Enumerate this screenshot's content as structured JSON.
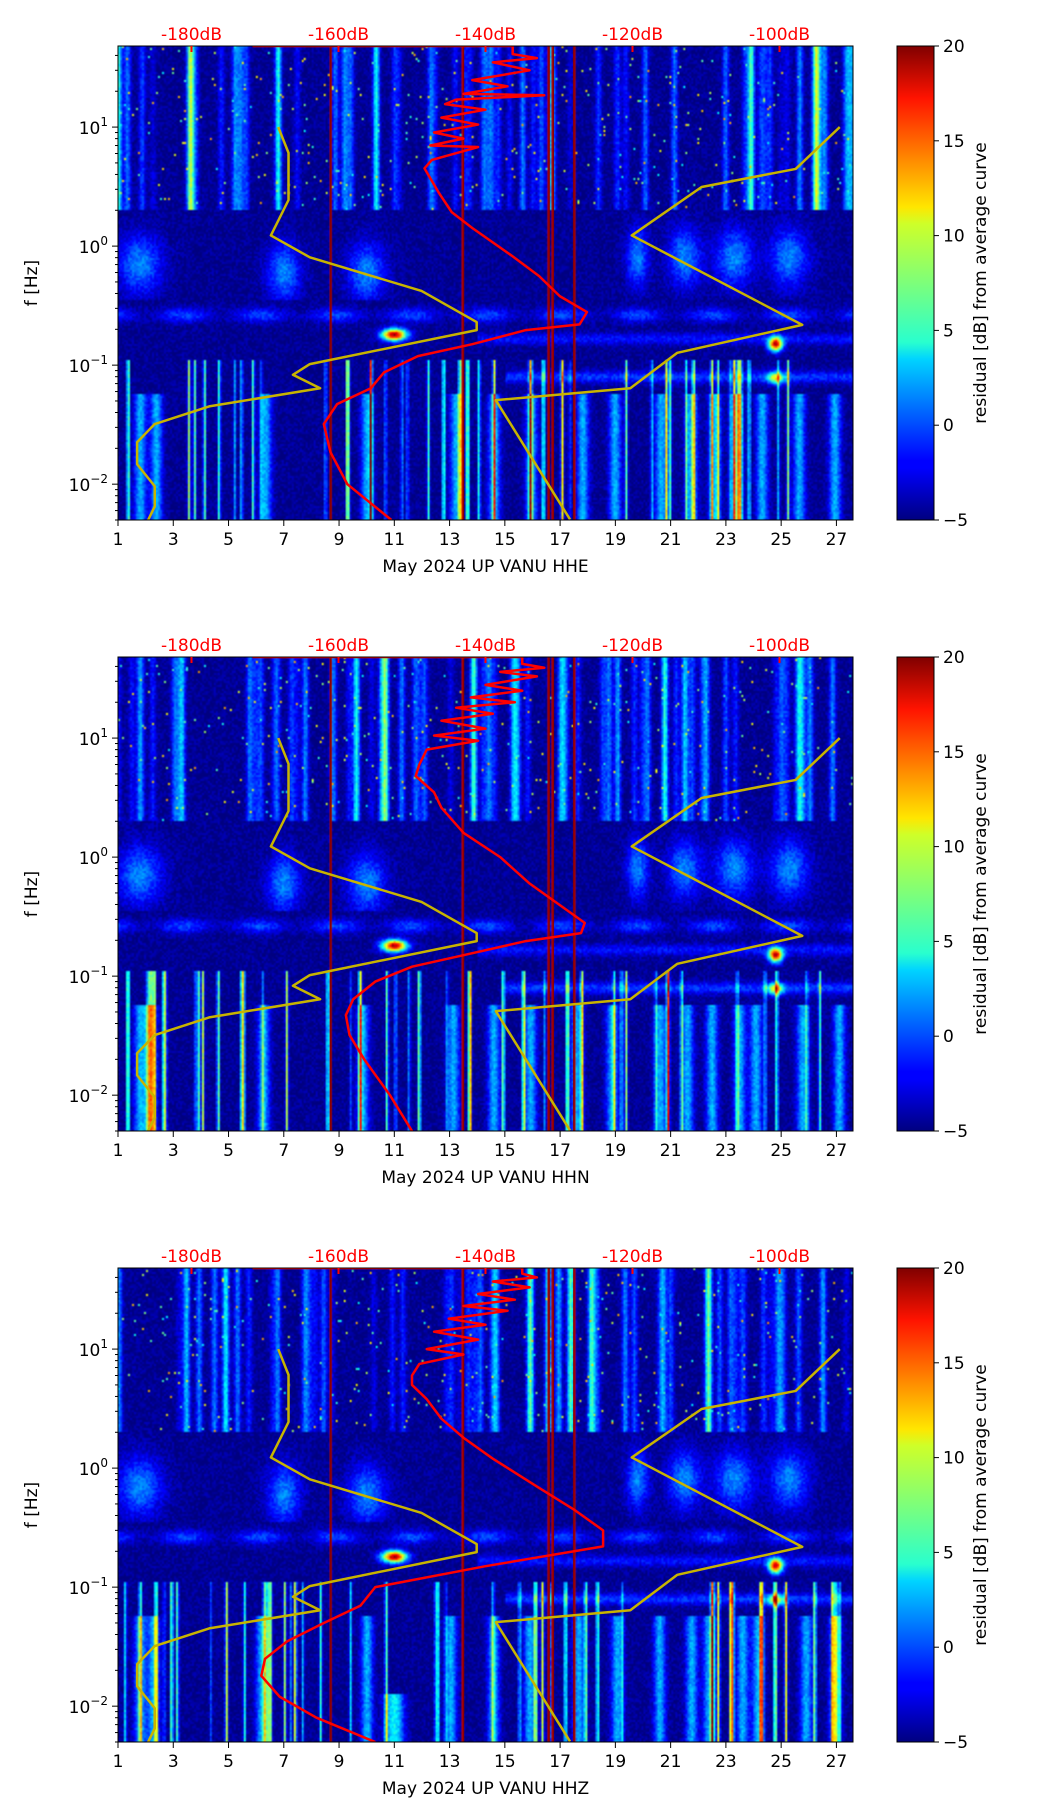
{
  "chart_data": [
    {
      "type": "heatmap",
      "title": "May 2024 UP VANU  HHE",
      "xlabel": "May 2024 UP VANU  HHE",
      "ylabel": "f [Hz]",
      "xlim": [
        1,
        27.6
      ],
      "ylim": [
        0.005,
        48
      ],
      "yscale": "log",
      "xticks": [
        "1",
        "3",
        "5",
        "7",
        "9",
        "11",
        "13",
        "15",
        "17",
        "19",
        "21",
        "23",
        "25",
        "27"
      ],
      "yticks": [
        {
          "base": "10",
          "exp": "−2",
          "value": 0.01
        },
        {
          "base": "10",
          "exp": "−1",
          "value": 0.1
        },
        {
          "base": "10",
          "exp": "0",
          "value": 1
        },
        {
          "base": "10",
          "exp": "1",
          "value": 10
        }
      ],
      "top_axis": {
        "range_db": [
          -190,
          -90
        ],
        "ticks": [
          {
            "label": "-180dB",
            "value": -180
          },
          {
            "label": "-160dB",
            "value": -160
          },
          {
            "label": "-140dB",
            "value": -140
          },
          {
            "label": "-120dB",
            "value": -120
          },
          {
            "label": "-100dB",
            "value": -100
          }
        ]
      },
      "colorbar": {
        "label": "residual [dB] from average curve",
        "range": [
          -5,
          20
        ],
        "ticks": [
          "−5",
          "0",
          "5",
          "10",
          "15",
          "20"
        ],
        "colormap": "jet"
      },
      "vertical_lines_days": [
        8.7,
        13.5,
        16.6,
        16.75,
        17.5
      ],
      "hotspots": [
        {
          "day": 11,
          "freq": 0.18
        },
        {
          "day": 24.8,
          "freq": 0.15
        }
      ],
      "average_curve": {
        "color": "#ff0000",
        "points_db_freq": [
          [
            -171.7,
            48
          ],
          [
            -136.3,
            48
          ],
          [
            -136.3,
            41
          ],
          [
            -133,
            38
          ],
          [
            -139,
            35
          ],
          [
            -134,
            30
          ],
          [
            -141.8,
            24.8
          ],
          [
            -137,
            22
          ],
          [
            -143,
            19
          ],
          [
            -132,
            18.5
          ],
          [
            -144,
            17
          ],
          [
            -145.5,
            15.6
          ],
          [
            -140,
            14
          ],
          [
            -146,
            12
          ],
          [
            -141,
            10.5
          ],
          [
            -147,
            9
          ],
          [
            -143,
            8
          ],
          [
            -147.5,
            7
          ],
          [
            -141,
            6.8
          ],
          [
            -147.3,
            5.3
          ],
          [
            -148.3,
            4.5
          ],
          [
            -146.4,
            2.84
          ],
          [
            -144.6,
            1.93
          ],
          [
            -141.8,
            1.42
          ],
          [
            -136.3,
            0.82
          ],
          [
            -132.7,
            0.56
          ],
          [
            -129.9,
            0.38
          ],
          [
            -126.2,
            0.279
          ],
          [
            -127.2,
            0.22
          ],
          [
            -134.5,
            0.197
          ],
          [
            -141.8,
            0.15
          ],
          [
            -149.2,
            0.119
          ],
          [
            -153.8,
            0.087
          ],
          [
            -155.6,
            0.064
          ],
          [
            -160.2,
            0.047
          ],
          [
            -162,
            0.032
          ],
          [
            -161.1,
            0.0186
          ],
          [
            -158.8,
            0.01
          ],
          [
            -152.8,
            0.005
          ]
        ]
      },
      "nlnm": {
        "color": "#c8b400",
        "points_db_freq": [
          [
            -168.2,
            10
          ],
          [
            -166.8,
            6.07
          ],
          [
            -166.8,
            2.44
          ],
          [
            -169.2,
            1.23
          ],
          [
            -163.9,
            0.805
          ],
          [
            -148.7,
            0.42
          ],
          [
            -141.2,
            0.23
          ],
          [
            -141.2,
            0.197
          ],
          [
            -163.9,
            0.102
          ],
          [
            -166.2,
            0.083
          ],
          [
            -162.5,
            0.064
          ],
          [
            -177.6,
            0.045
          ],
          [
            -185,
            0.032
          ],
          [
            -187.4,
            0.0225
          ],
          [
            -187.4,
            0.0147
          ],
          [
            -185,
            0.0096
          ],
          [
            -185,
            0.0065
          ],
          [
            -185.9,
            0.005
          ]
        ]
      },
      "nhnm": {
        "color": "#c8b400",
        "points_db_freq": [
          [
            -91.8,
            10
          ],
          [
            -97.8,
            4.45
          ],
          [
            -110.6,
            3.14
          ],
          [
            -120.1,
            1.23
          ],
          [
            -96.9,
            0.218
          ],
          [
            -113.9,
            0.127
          ],
          [
            -120.3,
            0.064
          ],
          [
            -138.6,
            0.0508
          ],
          [
            -128.5,
            0.00506
          ]
        ]
      }
    },
    {
      "type": "heatmap",
      "title": "May 2024 UP VANU  HHN",
      "xlabel": "May 2024 UP VANU  HHN",
      "ylabel": "f [Hz]",
      "xlim": [
        1,
        27.6
      ],
      "ylim": [
        0.005,
        48
      ],
      "yscale": "log",
      "xticks": [
        "1",
        "3",
        "5",
        "7",
        "9",
        "11",
        "13",
        "15",
        "17",
        "19",
        "21",
        "23",
        "25",
        "27"
      ],
      "yticks": [
        {
          "base": "10",
          "exp": "−2",
          "value": 0.01
        },
        {
          "base": "10",
          "exp": "−1",
          "value": 0.1
        },
        {
          "base": "10",
          "exp": "0",
          "value": 1
        },
        {
          "base": "10",
          "exp": "1",
          "value": 10
        }
      ],
      "top_axis": {
        "range_db": [
          -190,
          -90
        ],
        "ticks": [
          {
            "label": "-180dB",
            "value": -180
          },
          {
            "label": "-160dB",
            "value": -160
          },
          {
            "label": "-140dB",
            "value": -140
          },
          {
            "label": "-120dB",
            "value": -120
          },
          {
            "label": "-100dB",
            "value": -100
          }
        ]
      },
      "colorbar": {
        "label": "residual [dB] from average curve",
        "range": [
          -5,
          20
        ],
        "ticks": [
          "−5",
          "0",
          "5",
          "10",
          "15",
          "20"
        ],
        "colormap": "jet"
      },
      "vertical_lines_days": [
        8.7,
        13.5,
        16.6,
        16.75,
        17.5
      ],
      "hotspots": [
        {
          "day": 11,
          "freq": 0.18
        },
        {
          "day": 24.8,
          "freq": 0.15
        }
      ],
      "average_curve": {
        "color": "#ff0000",
        "points_db_freq": [
          [
            -171.7,
            48
          ],
          [
            -135,
            48
          ],
          [
            -135,
            42
          ],
          [
            -132,
            39
          ],
          [
            -138,
            36
          ],
          [
            -133,
            33
          ],
          [
            -140,
            28
          ],
          [
            -135,
            25
          ],
          [
            -142,
            22
          ],
          [
            -136,
            20
          ],
          [
            -144,
            18
          ],
          [
            -139,
            16
          ],
          [
            -146,
            14
          ],
          [
            -140,
            12
          ],
          [
            -147,
            10.5
          ],
          [
            -141,
            9.5
          ],
          [
            -148,
            8
          ],
          [
            -149,
            6
          ],
          [
            -149.5,
            4.8
          ],
          [
            -147,
            3.5
          ],
          [
            -146,
            2.6
          ],
          [
            -143,
            1.6
          ],
          [
            -138,
            1
          ],
          [
            -134,
            0.6
          ],
          [
            -130,
            0.4
          ],
          [
            -126.5,
            0.28
          ],
          [
            -127,
            0.23
          ],
          [
            -134.5,
            0.197
          ],
          [
            -143,
            0.15
          ],
          [
            -150,
            0.12
          ],
          [
            -155,
            0.09
          ],
          [
            -158,
            0.064
          ],
          [
            -159,
            0.047
          ],
          [
            -158.5,
            0.032
          ],
          [
            -156.5,
            0.02
          ],
          [
            -153,
            0.01
          ],
          [
            -150,
            0.005
          ]
        ]
      },
      "nlnm": {
        "color": "#c8b400",
        "points_db_freq": [
          [
            -168.2,
            10
          ],
          [
            -166.8,
            6.07
          ],
          [
            -166.8,
            2.44
          ],
          [
            -169.2,
            1.23
          ],
          [
            -163.9,
            0.805
          ],
          [
            -148.7,
            0.42
          ],
          [
            -141.2,
            0.23
          ],
          [
            -141.2,
            0.197
          ],
          [
            -163.9,
            0.102
          ],
          [
            -166.2,
            0.083
          ],
          [
            -162.5,
            0.064
          ],
          [
            -177.6,
            0.045
          ],
          [
            -185,
            0.032
          ],
          [
            -187.4,
            0.0225
          ],
          [
            -187.4,
            0.0147
          ],
          [
            -185,
            0.0096
          ],
          [
            -185,
            0.0065
          ],
          [
            -185.9,
            0.005
          ]
        ]
      },
      "nhnm": {
        "color": "#c8b400",
        "points_db_freq": [
          [
            -91.8,
            10
          ],
          [
            -97.8,
            4.45
          ],
          [
            -110.6,
            3.14
          ],
          [
            -120.1,
            1.23
          ],
          [
            -96.9,
            0.218
          ],
          [
            -113.9,
            0.127
          ],
          [
            -120.3,
            0.064
          ],
          [
            -138.6,
            0.0508
          ],
          [
            -128.5,
            0.00506
          ]
        ]
      }
    },
    {
      "type": "heatmap",
      "title": "May 2024 UP VANU  HHZ",
      "xlabel": "May 2024 UP VANU  HHZ",
      "ylabel": "f [Hz]",
      "xlim": [
        1,
        27.6
      ],
      "ylim": [
        0.005,
        48
      ],
      "yscale": "log",
      "xticks": [
        "1",
        "3",
        "5",
        "7",
        "9",
        "11",
        "13",
        "15",
        "17",
        "19",
        "21",
        "23",
        "25",
        "27"
      ],
      "yticks": [
        {
          "base": "10",
          "exp": "−2",
          "value": 0.01
        },
        {
          "base": "10",
          "exp": "−1",
          "value": 0.1
        },
        {
          "base": "10",
          "exp": "0",
          "value": 1
        },
        {
          "base": "10",
          "exp": "1",
          "value": 10
        }
      ],
      "top_axis": {
        "range_db": [
          -190,
          -90
        ],
        "ticks": [
          {
            "label": "-180dB",
            "value": -180
          },
          {
            "label": "-160dB",
            "value": -160
          },
          {
            "label": "-140dB",
            "value": -140
          },
          {
            "label": "-120dB",
            "value": -120
          },
          {
            "label": "-100dB",
            "value": -100
          }
        ]
      },
      "colorbar": {
        "label": "residual [dB] from average curve",
        "range": [
          -5,
          20
        ],
        "ticks": [
          "−5",
          "0",
          "5",
          "10",
          "15",
          "20"
        ],
        "colormap": "jet"
      },
      "vertical_lines_days": [
        8.7,
        13.5,
        16.6,
        16.75,
        17.5
      ],
      "hotspots": [
        {
          "day": 11,
          "freq": 0.18
        },
        {
          "day": 24.8,
          "freq": 0.15
        }
      ],
      "average_curve": {
        "color": "#ff0000",
        "points_db_freq": [
          [
            -171.7,
            48
          ],
          [
            -135,
            48
          ],
          [
            -135,
            43
          ],
          [
            -133,
            40
          ],
          [
            -139,
            37
          ],
          [
            -134,
            33
          ],
          [
            -141,
            29
          ],
          [
            -136,
            26
          ],
          [
            -143,
            23
          ],
          [
            -137,
            21
          ],
          [
            -145,
            18
          ],
          [
            -140,
            16
          ],
          [
            -147,
            14
          ],
          [
            -141,
            12
          ],
          [
            -148,
            10
          ],
          [
            -143,
            9
          ],
          [
            -149,
            7.5
          ],
          [
            -150,
            6
          ],
          [
            -150,
            5
          ],
          [
            -148,
            3.8
          ],
          [
            -146,
            2.6
          ],
          [
            -143,
            1.8
          ],
          [
            -139,
            1.2
          ],
          [
            -133,
            0.7
          ],
          [
            -128,
            0.45
          ],
          [
            -124,
            0.3
          ],
          [
            -124,
            0.22
          ],
          [
            -140,
            0.15
          ],
          [
            -155,
            0.1
          ],
          [
            -157,
            0.07
          ],
          [
            -162,
            0.05
          ],
          [
            -167,
            0.035
          ],
          [
            -170,
            0.025
          ],
          [
            -170.5,
            0.018
          ],
          [
            -168,
            0.012
          ],
          [
            -163,
            0.008
          ],
          [
            -155,
            0.005
          ]
        ]
      },
      "nlnm": {
        "color": "#c8b400",
        "points_db_freq": [
          [
            -168.2,
            10
          ],
          [
            -166.8,
            6.07
          ],
          [
            -166.8,
            2.44
          ],
          [
            -169.2,
            1.23
          ],
          [
            -163.9,
            0.805
          ],
          [
            -148.7,
            0.42
          ],
          [
            -141.2,
            0.23
          ],
          [
            -141.2,
            0.197
          ],
          [
            -163.9,
            0.102
          ],
          [
            -166.2,
            0.083
          ],
          [
            -162.5,
            0.064
          ],
          [
            -177.6,
            0.045
          ],
          [
            -185,
            0.032
          ],
          [
            -187.4,
            0.0225
          ],
          [
            -187.4,
            0.0147
          ],
          [
            -185,
            0.0096
          ],
          [
            -185,
            0.0065
          ],
          [
            -185.9,
            0.005
          ]
        ]
      },
      "nhnm": {
        "color": "#c8b400",
        "points_db_freq": [
          [
            -91.8,
            10
          ],
          [
            -97.8,
            4.45
          ],
          [
            -110.6,
            3.14
          ],
          [
            -120.1,
            1.23
          ],
          [
            -96.9,
            0.218
          ],
          [
            -113.9,
            0.127
          ],
          [
            -120.3,
            0.064
          ],
          [
            -138.6,
            0.0508
          ],
          [
            -128.5,
            0.00506
          ]
        ]
      }
    }
  ]
}
